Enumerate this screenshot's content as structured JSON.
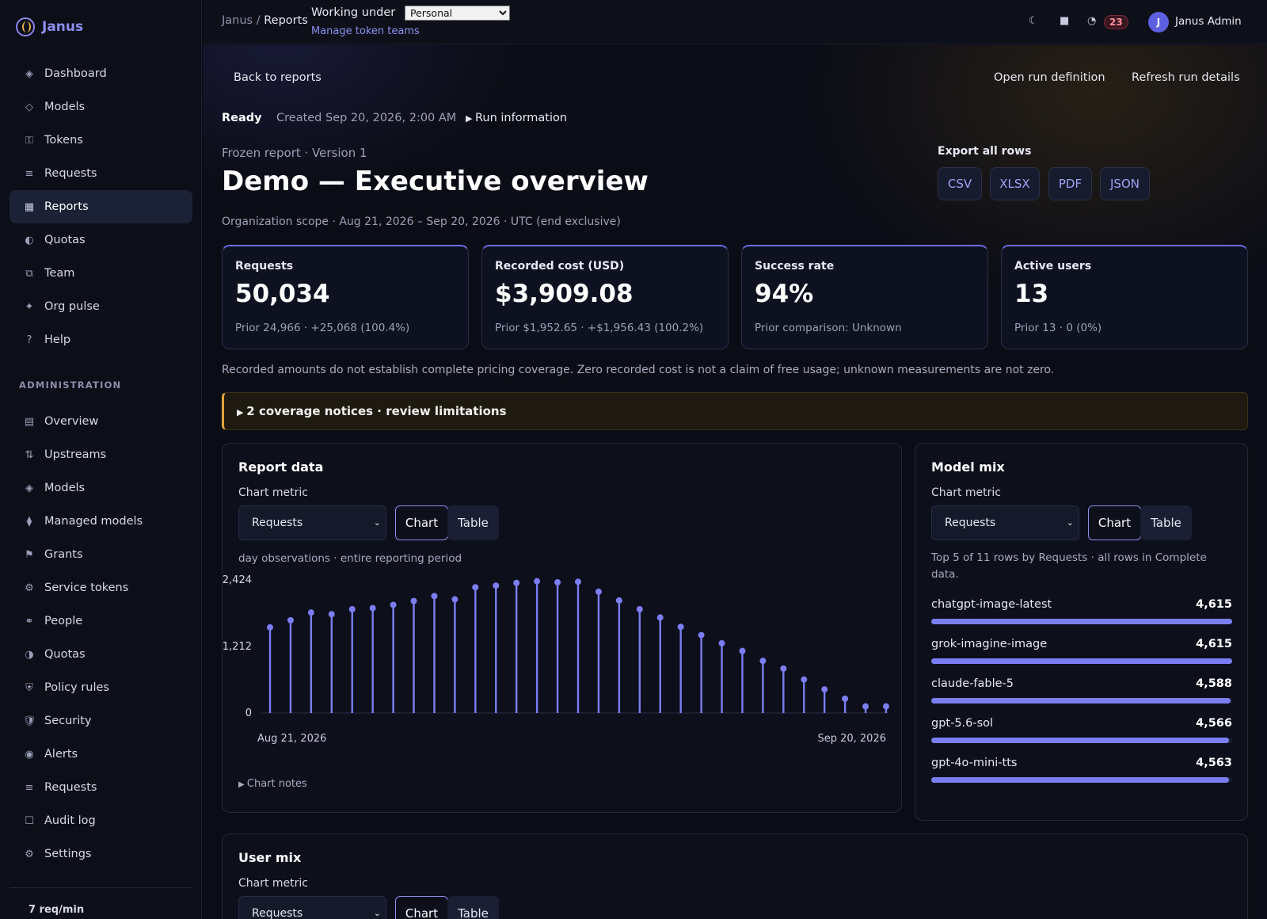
{
  "brand": {
    "name": "Janus"
  },
  "sidebar": {
    "items": [
      {
        "icon": "◈",
        "label": "Dashboard"
      },
      {
        "icon": "◇",
        "label": "Models"
      },
      {
        "icon": "⚿",
        "label": "Tokens"
      },
      {
        "icon": "≡",
        "label": "Requests"
      },
      {
        "icon": "▦",
        "label": "Reports",
        "active": true
      },
      {
        "icon": "◐",
        "label": "Quotas"
      },
      {
        "icon": "⧉",
        "label": "Team"
      },
      {
        "icon": "✦",
        "label": "Org pulse"
      },
      {
        "icon": "?",
        "label": "Help"
      }
    ],
    "admin_heading": "ADMINISTRATION",
    "admin_items": [
      {
        "icon": "▤",
        "label": "Overview"
      },
      {
        "icon": "⇅",
        "label": "Upstreams"
      },
      {
        "icon": "◈",
        "label": "Models"
      },
      {
        "icon": "⧫",
        "label": "Managed models"
      },
      {
        "icon": "⚑",
        "label": "Grants"
      },
      {
        "icon": "⚙",
        "label": "Service tokens"
      },
      {
        "icon": "⚭",
        "label": "People"
      },
      {
        "icon": "◑",
        "label": "Quotas"
      },
      {
        "icon": "⛨",
        "label": "Policy rules"
      },
      {
        "icon": "🛡",
        "label": "Security"
      },
      {
        "icon": "◉",
        "label": "Alerts"
      },
      {
        "icon": "≡",
        "label": "Requests"
      },
      {
        "icon": "☐",
        "label": "Audit log"
      },
      {
        "icon": "⚙",
        "label": "Settings"
      }
    ],
    "footer": "7 req/min"
  },
  "topbar": {
    "crumb_root": "Janus",
    "crumb_sep": " / ",
    "crumb_current": "Reports",
    "working_under": "Working under",
    "team_selected": "Personal",
    "manage_link": "Manage token teams",
    "notifications": "23",
    "user_initial": "J",
    "user_name": "Janus Admin",
    "icons": [
      "moon-icon",
      "stop-icon",
      "pie-icon"
    ]
  },
  "page": {
    "back": "Back to reports",
    "open_def": "Open run definition",
    "refresh": "Refresh run details",
    "status": "Ready",
    "created": "Created Sep 20, 2026, 2:00 AM",
    "run_info": "Run information",
    "frozen": "Frozen report · Version 1",
    "title": "Demo — Executive overview",
    "scope": "Organization scope · Aug 21, 2026 – Sep 20, 2026 · UTC (end exclusive)",
    "export_label": "Export all rows",
    "exports": [
      "CSV",
      "XLSX",
      "PDF",
      "JSON"
    ],
    "disclaimer": "Recorded amounts do not establish complete pricing coverage. Zero recorded cost is not a claim of free usage; unknown measurements are not zero.",
    "notice": "2 coverage notices · review limitations"
  },
  "kpis": [
    {
      "label": "Requests",
      "value": "50,034",
      "sub": "Prior 24,966 · +25,068 (100.4%)"
    },
    {
      "label": "Recorded cost (USD)",
      "value": "$3,909.08",
      "sub": "Prior $1,952.65 · +$1,956.43 (100.2%)"
    },
    {
      "label": "Success rate",
      "value": "94%",
      "sub": "Prior comparison: Unknown"
    },
    {
      "label": "Active users",
      "value": "13",
      "sub": "Prior 13 · 0 (0%)"
    }
  ],
  "report_panel": {
    "title": "Report data",
    "metric_label": "Chart metric",
    "metric_value": "Requests",
    "toggle_chart": "Chart",
    "toggle_table": "Table",
    "caption": "day observations · entire reporting period",
    "notes": "Chart notes"
  },
  "chart_data": {
    "type": "scatter",
    "title": "",
    "xlabel": "",
    "ylabel": "",
    "x_start_label": "Aug 21, 2026",
    "x_end_label": "Sep 20, 2026",
    "y_ticks": [
      "2,424",
      "1,212",
      "0"
    ],
    "ylim": [
      0,
      2424
    ],
    "x": [
      "Aug 21",
      "Aug 22",
      "Aug 23",
      "Aug 24",
      "Aug 25",
      "Aug 26",
      "Aug 27",
      "Aug 28",
      "Aug 29",
      "Aug 30",
      "Aug 31",
      "Sep 1",
      "Sep 2",
      "Sep 3",
      "Sep 4",
      "Sep 5",
      "Sep 6",
      "Sep 7",
      "Sep 8",
      "Sep 9",
      "Sep 10",
      "Sep 11",
      "Sep 12",
      "Sep 13",
      "Sep 14",
      "Sep 15",
      "Sep 16",
      "Sep 17",
      "Sep 18",
      "Sep 19",
      "Sep 20"
    ],
    "values": [
      1560,
      1690,
      1830,
      1800,
      1890,
      1910,
      1970,
      2040,
      2130,
      2070,
      2290,
      2320,
      2370,
      2400,
      2380,
      2390,
      2210,
      2050,
      1890,
      1740,
      1570,
      1420,
      1270,
      1130,
      950,
      810,
      610,
      430,
      260,
      120,
      120
    ],
    "color": "#7b7ef2",
    "grid": false
  },
  "model_panel": {
    "title": "Model mix",
    "metric_label": "Chart metric",
    "metric_value": "Requests",
    "toggle_chart": "Chart",
    "toggle_table": "Table",
    "caption": "Top 5 of 11 rows by Requests · all rows in Complete data.",
    "rows": [
      {
        "name": "chatgpt-image-latest",
        "value": "4,615",
        "fraction": 1.0
      },
      {
        "name": "grok-imagine-image",
        "value": "4,615",
        "fraction": 1.0
      },
      {
        "name": "claude-fable-5",
        "value": "4,588",
        "fraction": 0.994
      },
      {
        "name": "gpt-5.6-sol",
        "value": "4,566",
        "fraction": 0.989
      },
      {
        "name": "gpt-4o-mini-tts",
        "value": "4,563",
        "fraction": 0.989
      }
    ]
  },
  "user_panel": {
    "title": "User mix",
    "metric_label": "Chart metric",
    "metric_value": "Requests",
    "toggle_chart": "Chart",
    "toggle_table": "Table"
  }
}
